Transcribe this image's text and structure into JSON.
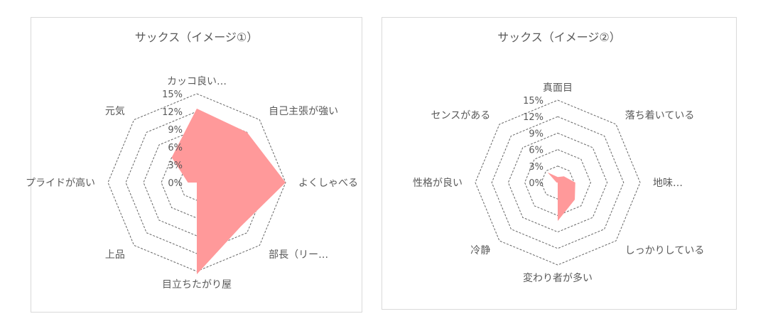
{
  "chart_data": [
    {
      "type": "radar",
      "title": "サックス（イメージ①）",
      "categories": [
        "カッコ良い…",
        "自己主張が強い",
        "よくしゃべる",
        "部長（リー…",
        "目立ちたがり屋",
        "上品",
        "プライドが高い",
        "元気"
      ],
      "values": [
        12.5,
        12,
        15,
        10.5,
        15.5,
        0,
        1.5,
        6
      ],
      "rlim": [
        0,
        15
      ],
      "ticks": [
        "0%",
        "3%",
        "6%",
        "9%",
        "12%",
        "15%"
      ],
      "grid": true,
      "fill_color": "#ff999a"
    },
    {
      "type": "radar",
      "title": "サックス（イメージ②）",
      "categories": [
        "真面目",
        "落ち着いている",
        "地味…",
        "しっかりしている",
        "変わり者が多い",
        "冷静",
        "性格が良い",
        "センスがある"
      ],
      "values": [
        1,
        1.6,
        3.2,
        4.4,
        7,
        0,
        0.2,
        2.6
      ],
      "rlim": [
        0,
        15
      ],
      "ticks": [
        "0%",
        "3%",
        "6%",
        "9%",
        "12%",
        "15%"
      ],
      "grid": true,
      "fill_color": "#ff999a"
    }
  ]
}
